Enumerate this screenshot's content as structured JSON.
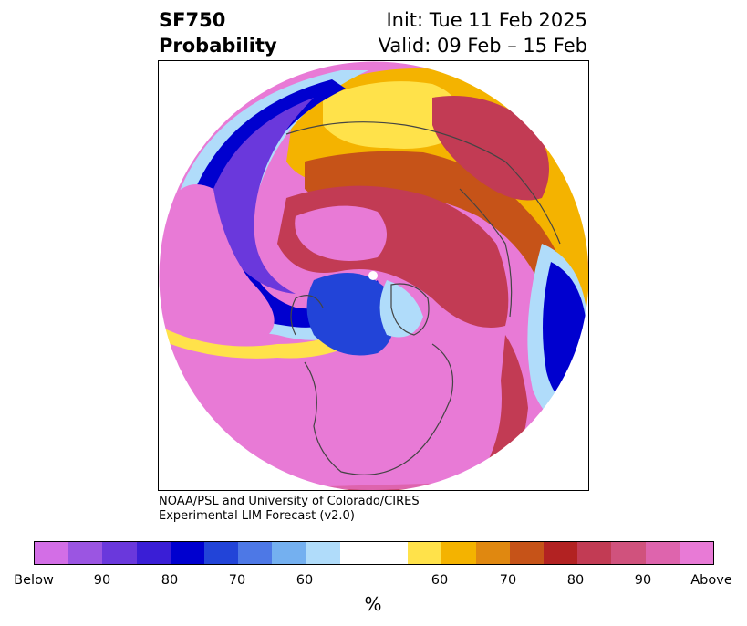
{
  "header": {
    "variable": "SF750",
    "subtitle": "Probability",
    "init": "Init: Tue 11 Feb 2025",
    "valid": "Valid: 09 Feb – 15 Feb"
  },
  "credit": {
    "line1": "NOAA/PSL and University of Colorado/CIRES",
    "line2": "Experimental LIM Forecast (v2.0)"
  },
  "colorbar": {
    "colors": [
      "#d36ee6",
      "#9b55e2",
      "#6a38dc",
      "#3a1ed6",
      "#0000cf",
      "#2244d8",
      "#4d78e6",
      "#74b0f0",
      "#b0dcfa",
      "#ffffff",
      "#ffffff",
      "#ffe24a",
      "#f4b300",
      "#e08810",
      "#c65318",
      "#b22222",
      "#c23b54",
      "#d0527d",
      "#de64ad",
      "#e87ad6"
    ],
    "tick_labels": [
      "Below",
      "90",
      "80",
      "70",
      "60",
      "60",
      "70",
      "80",
      "90",
      "Above"
    ],
    "unit": "%"
  },
  "map_colors": {
    "above": "#e87ad6",
    "above90": "#de64ad",
    "above80": "#c23b54",
    "above70": "#c65318",
    "above60": "#f4b300",
    "light_yellow": "#ffe24a",
    "below_light": "#b0dcfa",
    "below60": "#74b0f0",
    "below70": "#2244d8",
    "below80": "#0000cf",
    "below90": "#6a38dc",
    "below": "#d36ee6",
    "coast": "#444444"
  }
}
